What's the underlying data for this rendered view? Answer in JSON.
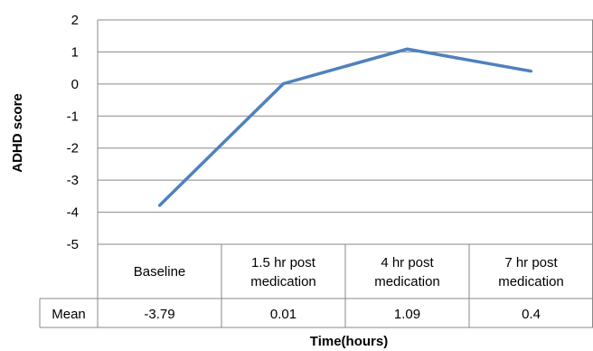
{
  "chart_data": {
    "type": "line",
    "categories": [
      "Baseline",
      "1.5 hr post medication",
      "4 hr post medication",
      "7 hr post medication"
    ],
    "category_lines": [
      [
        "Baseline"
      ],
      [
        "1.5 hr post",
        "medication"
      ],
      [
        "4 hr post",
        "medication"
      ],
      [
        "7 hr post",
        "medication"
      ]
    ],
    "series": [
      {
        "name": "Mean",
        "values": [
          -3.79,
          0.01,
          1.09,
          0.4
        ],
        "labels": [
          "-3.79",
          "0.01",
          "1.09",
          "0.4"
        ],
        "color": "#4f81bd"
      }
    ],
    "ylabel": "ADHD score",
    "xlabel": "Time(hours)",
    "ylim": [
      -5,
      2
    ],
    "yticks": [
      "2",
      "1",
      "0",
      "-1",
      "-2",
      "-3",
      "-4",
      "-5"
    ],
    "grid": true,
    "data_table": true
  }
}
